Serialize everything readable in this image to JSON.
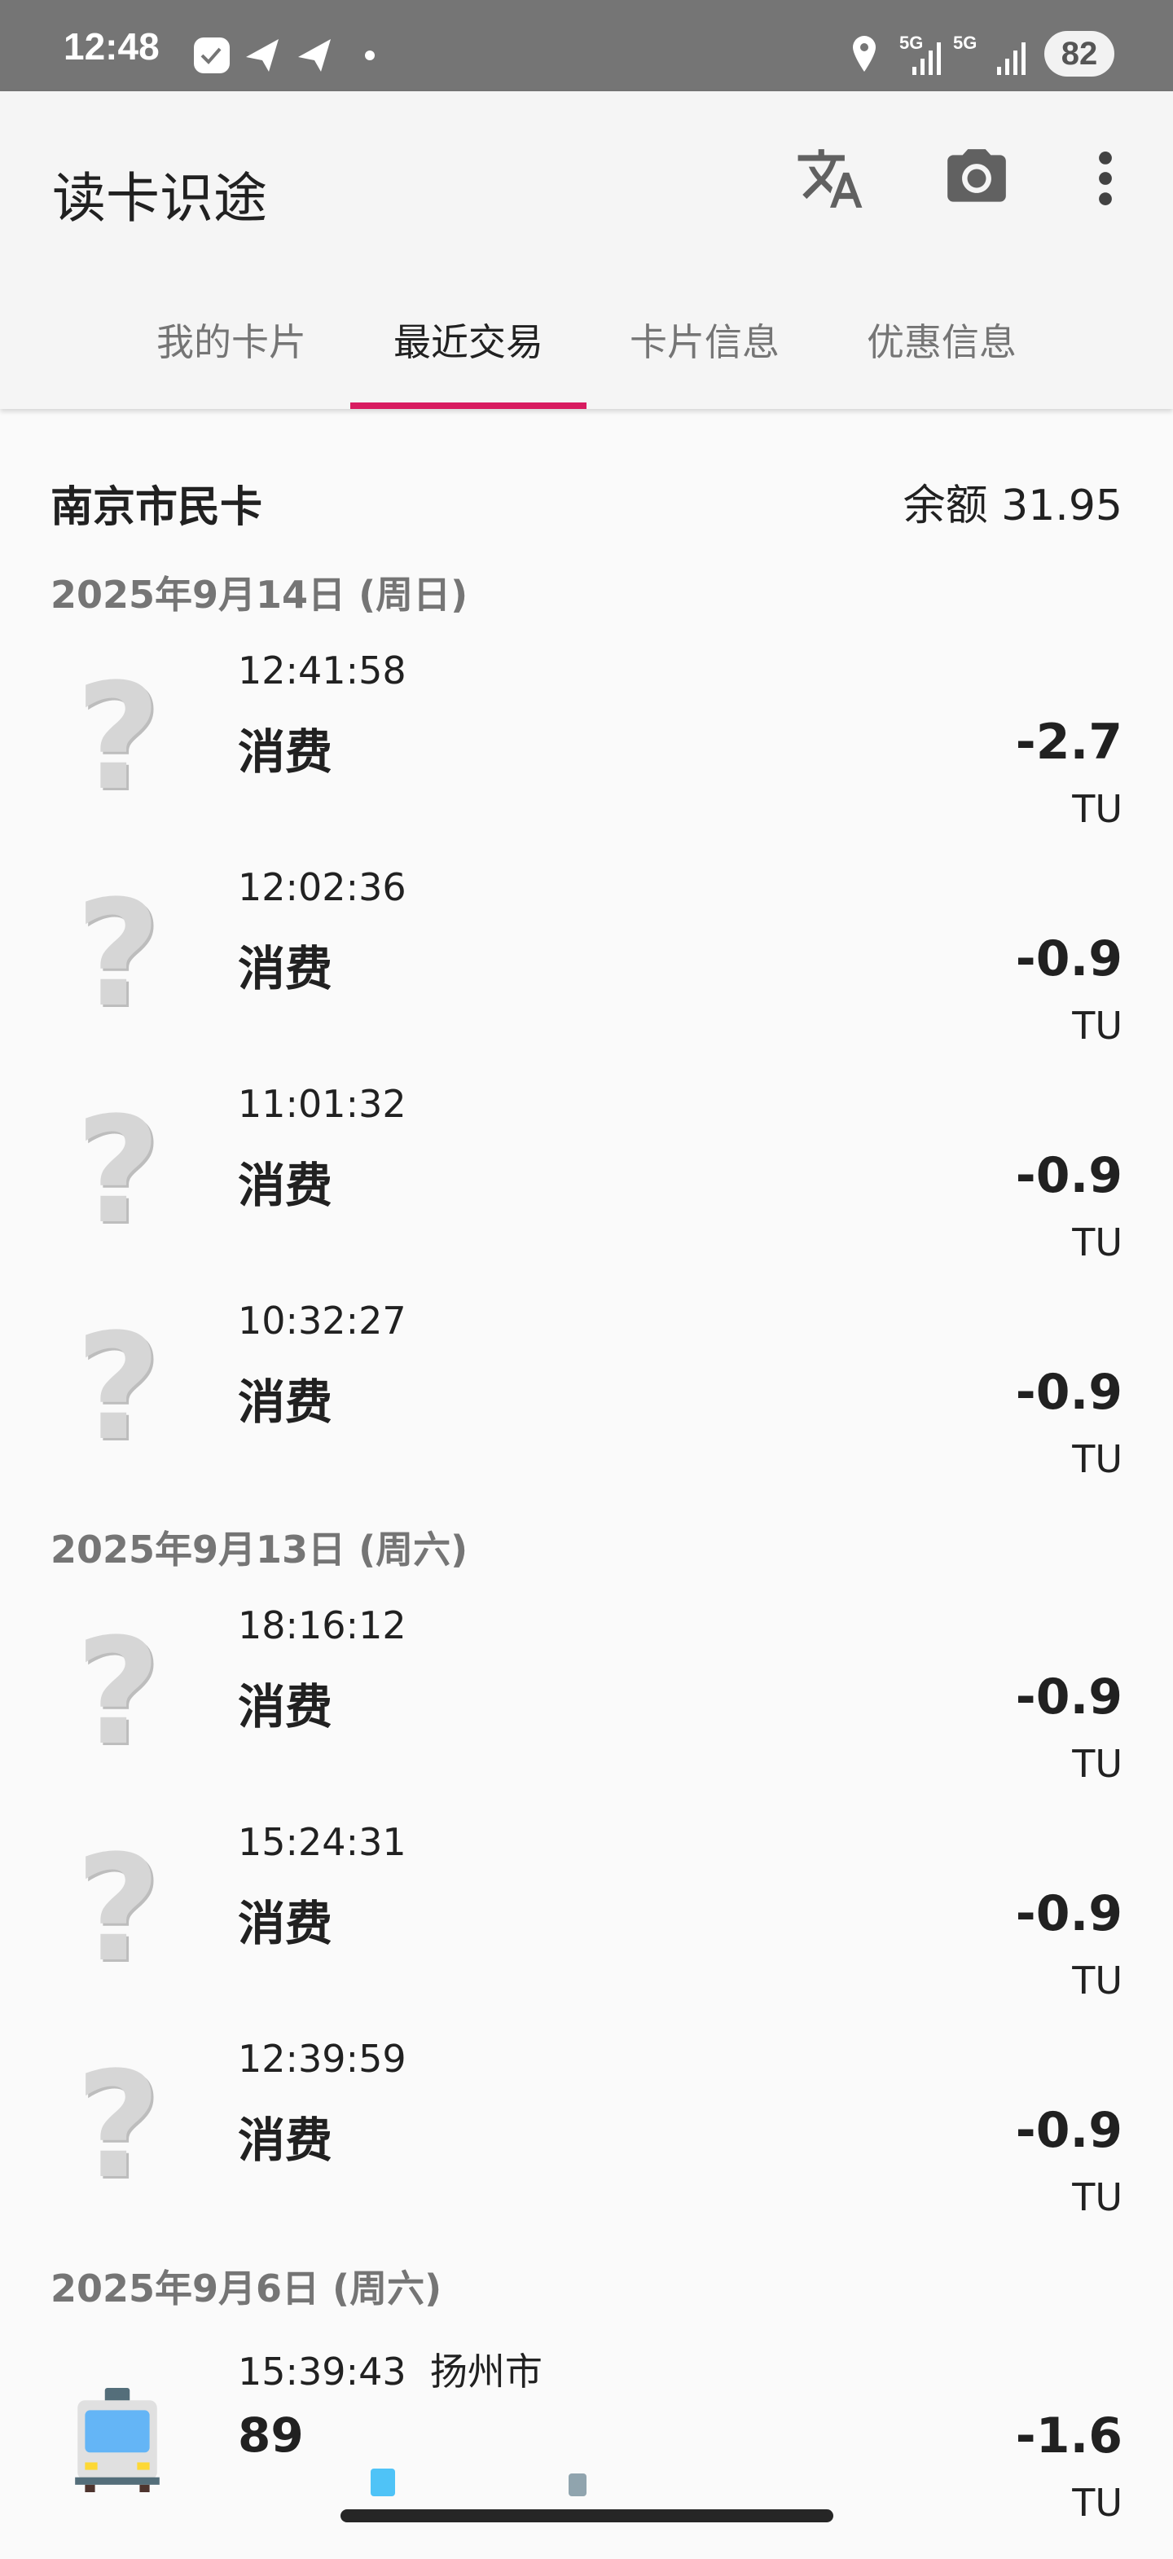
{
  "status_bar": {
    "time": "12:48",
    "battery": "82",
    "network1": "5G",
    "network2": "5G"
  },
  "app_bar": {
    "title": "读卡识途",
    "icons": [
      "translate-icon",
      "camera-icon",
      "more-vert-icon"
    ]
  },
  "tabs": [
    {
      "label": "我的卡片"
    },
    {
      "label": "最近交易",
      "active": true
    },
    {
      "label": "卡片信息"
    },
    {
      "label": "优惠信息"
    }
  ],
  "accent_color": "#d81b60",
  "card": {
    "name": "南京市民卡",
    "balance": "余额 31.95"
  },
  "groups": [
    {
      "date": "2025年9月14日 (周日)",
      "rows": [
        {
          "time": "12:41:58",
          "label": "消费",
          "amount": "-2.7",
          "currency": "TU",
          "icon": "unknown-question-icon"
        },
        {
          "time": "12:02:36",
          "label": "消费",
          "amount": "-0.9",
          "currency": "TU",
          "icon": "unknown-question-icon"
        },
        {
          "time": "11:01:32",
          "label": "消费",
          "amount": "-0.9",
          "currency": "TU",
          "icon": "unknown-question-icon"
        },
        {
          "time": "10:32:27",
          "label": "消费",
          "amount": "-0.9",
          "currency": "TU",
          "icon": "unknown-question-icon"
        }
      ]
    },
    {
      "date": "2025年9月13日 (周六)",
      "rows": [
        {
          "time": "18:16:12",
          "label": "消费",
          "amount": "-0.9",
          "currency": "TU",
          "icon": "unknown-question-icon"
        },
        {
          "time": "15:24:31",
          "label": "消费",
          "amount": "-0.9",
          "currency": "TU",
          "icon": "unknown-question-icon"
        },
        {
          "time": "12:39:59",
          "label": "消费",
          "amount": "-0.9",
          "currency": "TU",
          "icon": "unknown-question-icon"
        }
      ]
    },
    {
      "date": "2025年9月6日 (周六)",
      "rows": [
        {
          "time": "15:39:43  扬州市",
          "label": "89",
          "amount": "-1.6",
          "currency": "TU",
          "icon": "bus-icon"
        }
      ]
    }
  ]
}
